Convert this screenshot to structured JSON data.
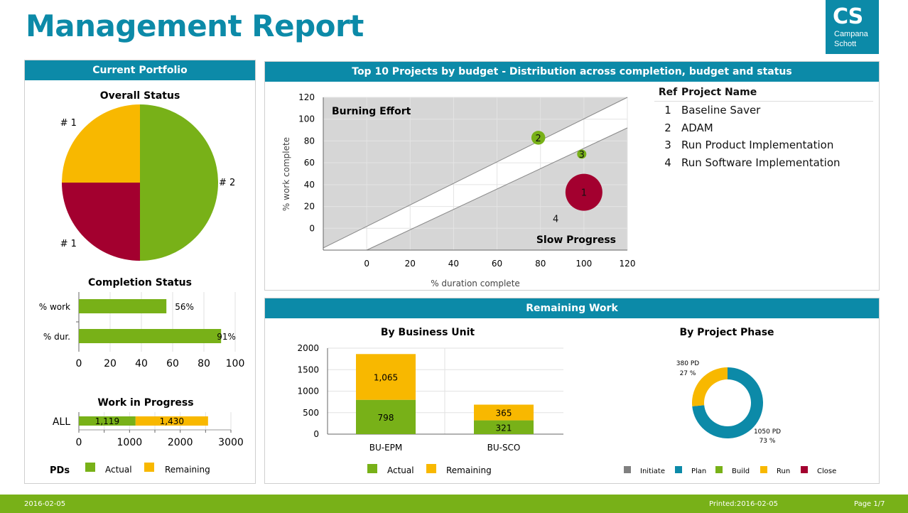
{
  "header": {
    "title": "Management Report",
    "logo_main": "CS",
    "logo_line1": "Campana",
    "logo_line2": "Schott"
  },
  "colors": {
    "accent": "#0c8aa8",
    "green": "#78b118",
    "yellow": "#f8b800",
    "red": "#a3002f",
    "gray": "#808080",
    "teal": "#0c8aa8"
  },
  "portfolio": {
    "header": "Current Portfolio",
    "overall_title": "Overall Status",
    "completion_title": "Completion Status",
    "wip_title": "Work in Progress",
    "legend_prefix": "PDs",
    "legend_actual": "Actual",
    "legend_remaining": "Remaining"
  },
  "top10": {
    "header": "Top 10 Projects by budget - Distribution across completion, budget and status",
    "table_headers": {
      "ref": "Ref",
      "name": "Project Name"
    },
    "projects": [
      {
        "ref": "1",
        "name": "Baseline Saver"
      },
      {
        "ref": "2",
        "name": "ADAM"
      },
      {
        "ref": "3",
        "name": "Run Product Implementation"
      },
      {
        "ref": "4",
        "name": "Run Software Implementation"
      }
    ]
  },
  "remaining": {
    "header": "Remaining Work",
    "bu_title": "By Business Unit",
    "phase_title": "By Project Phase"
  },
  "footer": {
    "date": "2016-02-05",
    "printed": "Printed:2016-02-05",
    "page": "Page 1/7"
  },
  "chart_data": [
    {
      "type": "pie",
      "title": "Overall Status",
      "slices": [
        {
          "label": "# 2",
          "value": 2,
          "color": "#78b118"
        },
        {
          "label": "# 1",
          "value": 1,
          "color": "#a3002f"
        },
        {
          "label": "# 1",
          "value": 1,
          "color": "#f8b800"
        }
      ]
    },
    {
      "type": "bar",
      "orientation": "horizontal",
      "title": "Completion Status",
      "categories": [
        "% work",
        "% dur."
      ],
      "values": [
        56,
        91
      ],
      "value_labels": [
        "56%",
        "91%"
      ],
      "xlim": [
        0,
        100
      ],
      "xticks": [
        0,
        20,
        40,
        60,
        80,
        100
      ]
    },
    {
      "type": "bar",
      "orientation": "horizontal",
      "stacked": true,
      "title": "Work in Progress",
      "categories": [
        "ALL"
      ],
      "series": [
        {
          "name": "Actual",
          "values": [
            1119
          ],
          "labels": [
            "1,119"
          ],
          "color": "#78b118"
        },
        {
          "name": "Remaining",
          "values": [
            1430
          ],
          "labels": [
            "1,430"
          ],
          "color": "#f8b800"
        }
      ],
      "xlim": [
        0,
        3000
      ],
      "xticks": [
        0,
        1000,
        2000,
        3000
      ],
      "xlabel": "PDs"
    },
    {
      "type": "scatter",
      "title": "Top 10 Projects by budget - Distribution across completion, budget and status",
      "xlabel": "% duration complete",
      "ylabel": "% work complete",
      "xlim": [
        -20,
        120
      ],
      "ylim": [
        -20,
        120
      ],
      "xticks": [
        0,
        20,
        40,
        60,
        80,
        100,
        120
      ],
      "yticks": [
        0,
        20,
        40,
        60,
        80,
        100,
        120
      ],
      "zone_labels": {
        "upper": "Burning Effort",
        "lower": "Slow Progress"
      },
      "points": [
        {
          "ref": "1",
          "x": 100,
          "y": 33,
          "size": 4,
          "color": "#a3002f"
        },
        {
          "ref": "2",
          "x": 79,
          "y": 83,
          "size": 1.5,
          "color": "#78b118"
        },
        {
          "ref": "3",
          "x": 99,
          "y": 68,
          "size": 1,
          "color": "#78b118"
        },
        {
          "ref": "4",
          "x": 87,
          "y": 9,
          "size": 0,
          "color": "#f8b800"
        }
      ]
    },
    {
      "type": "bar",
      "stacked": true,
      "title": "By Business Unit",
      "categories": [
        "BU-EPM",
        "BU-SCO"
      ],
      "series": [
        {
          "name": "Actual",
          "values": [
            798,
            321
          ],
          "labels": [
            "798",
            "321"
          ],
          "color": "#78b118"
        },
        {
          "name": "Remaining",
          "values": [
            1065,
            365
          ],
          "labels": [
            "1,065",
            "365"
          ],
          "color": "#f8b800"
        }
      ],
      "ylim": [
        0,
        2000
      ],
      "yticks": [
        0,
        500,
        1000,
        1500,
        2000
      ]
    },
    {
      "type": "pie",
      "donut": true,
      "title": "By Project Phase",
      "slices": [
        {
          "label": "1050 PD",
          "pct": "73 %",
          "value": 1050,
          "color": "#0c8aa8"
        },
        {
          "label": "380 PD",
          "pct": "27 %",
          "value": 380,
          "color": "#f8b800"
        }
      ],
      "legend": [
        {
          "name": "Initiate",
          "color": "#808080"
        },
        {
          "name": "Plan",
          "color": "#0c8aa8"
        },
        {
          "name": "Build",
          "color": "#78b118"
        },
        {
          "name": "Run",
          "color": "#f8b800"
        },
        {
          "name": "Close",
          "color": "#a3002f"
        }
      ]
    }
  ]
}
